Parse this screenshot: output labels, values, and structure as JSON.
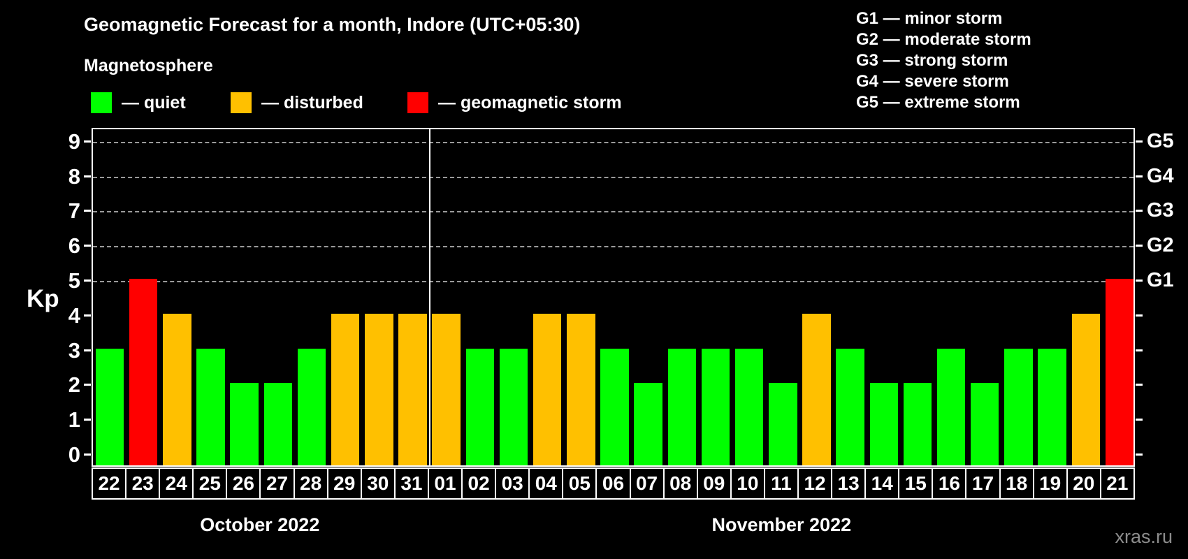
{
  "header": {
    "title": "Geomagnetic Forecast for a month, Indore (UTC+05:30)",
    "subtitle": "Magnetosphere"
  },
  "condition_legend": [
    {
      "key": "quiet",
      "label": "— quiet",
      "color": "#00ff00"
    },
    {
      "key": "disturbed",
      "label": "— disturbed",
      "color": "#ffc000"
    },
    {
      "key": "storm",
      "label": "— geomagnetic storm",
      "color": "#ff0000"
    }
  ],
  "storm_scale_legend": [
    {
      "code": "G1",
      "label": "— minor storm"
    },
    {
      "code": "G2",
      "label": "— moderate storm"
    },
    {
      "code": "G3",
      "label": "— strong storm"
    },
    {
      "code": "G4",
      "label": "— severe storm"
    },
    {
      "code": "G5",
      "label": "— extreme storm"
    }
  ],
  "axes": {
    "y_label": "Kp",
    "y_ticks": [
      0,
      1,
      2,
      3,
      4,
      5,
      6,
      7,
      8,
      9
    ],
    "gridlines_at_kp": [
      5,
      6,
      7,
      8,
      9
    ],
    "right_axis_labels": [
      {
        "kp": 5,
        "label": "G1"
      },
      {
        "kp": 6,
        "label": "G2"
      },
      {
        "kp": 7,
        "label": "G3"
      },
      {
        "kp": 8,
        "label": "G4"
      },
      {
        "kp": 9,
        "label": "G5"
      }
    ]
  },
  "watermark": "xras.ru",
  "chart_data": {
    "type": "bar",
    "title": "Geomagnetic Forecast for a month, Indore (UTC+05:30)",
    "ylabel": "Kp",
    "ylim": [
      0,
      9
    ],
    "grid": "dashed horizontal lines at Kp 5,6,7,8,9",
    "legend_position": "top-left",
    "status_colors": {
      "quiet": "#00ff00",
      "disturbed": "#ffc000",
      "storm": "#ff0000"
    },
    "months": [
      {
        "label": "October 2022",
        "days": [
          {
            "date": "22",
            "kp": 3,
            "status": "quiet"
          },
          {
            "date": "23",
            "kp": 5,
            "status": "storm"
          },
          {
            "date": "24",
            "kp": 4,
            "status": "disturbed"
          },
          {
            "date": "25",
            "kp": 3,
            "status": "quiet"
          },
          {
            "date": "26",
            "kp": 2,
            "status": "quiet"
          },
          {
            "date": "27",
            "kp": 2,
            "status": "quiet"
          },
          {
            "date": "28",
            "kp": 3,
            "status": "quiet"
          },
          {
            "date": "29",
            "kp": 4,
            "status": "disturbed"
          },
          {
            "date": "30",
            "kp": 4,
            "status": "disturbed"
          },
          {
            "date": "31",
            "kp": 4,
            "status": "disturbed"
          }
        ]
      },
      {
        "label": "November 2022",
        "days": [
          {
            "date": "01",
            "kp": 4,
            "status": "disturbed"
          },
          {
            "date": "02",
            "kp": 3,
            "status": "quiet"
          },
          {
            "date": "03",
            "kp": 3,
            "status": "quiet"
          },
          {
            "date": "04",
            "kp": 4,
            "status": "disturbed"
          },
          {
            "date": "05",
            "kp": 4,
            "status": "disturbed"
          },
          {
            "date": "06",
            "kp": 3,
            "status": "quiet"
          },
          {
            "date": "07",
            "kp": 2,
            "status": "quiet"
          },
          {
            "date": "08",
            "kp": 3,
            "status": "quiet"
          },
          {
            "date": "09",
            "kp": 3,
            "status": "quiet"
          },
          {
            "date": "10",
            "kp": 3,
            "status": "quiet"
          },
          {
            "date": "11",
            "kp": 2,
            "status": "quiet"
          },
          {
            "date": "12",
            "kp": 4,
            "status": "disturbed"
          },
          {
            "date": "13",
            "kp": 3,
            "status": "quiet"
          },
          {
            "date": "14",
            "kp": 2,
            "status": "quiet"
          },
          {
            "date": "15",
            "kp": 2,
            "status": "quiet"
          },
          {
            "date": "16",
            "kp": 3,
            "status": "quiet"
          },
          {
            "date": "17",
            "kp": 2,
            "status": "quiet"
          },
          {
            "date": "18",
            "kp": 3,
            "status": "quiet"
          },
          {
            "date": "19",
            "kp": 3,
            "status": "quiet"
          },
          {
            "date": "20",
            "kp": 4,
            "status": "disturbed"
          },
          {
            "date": "21",
            "kp": 5,
            "status": "storm"
          }
        ]
      }
    ]
  }
}
